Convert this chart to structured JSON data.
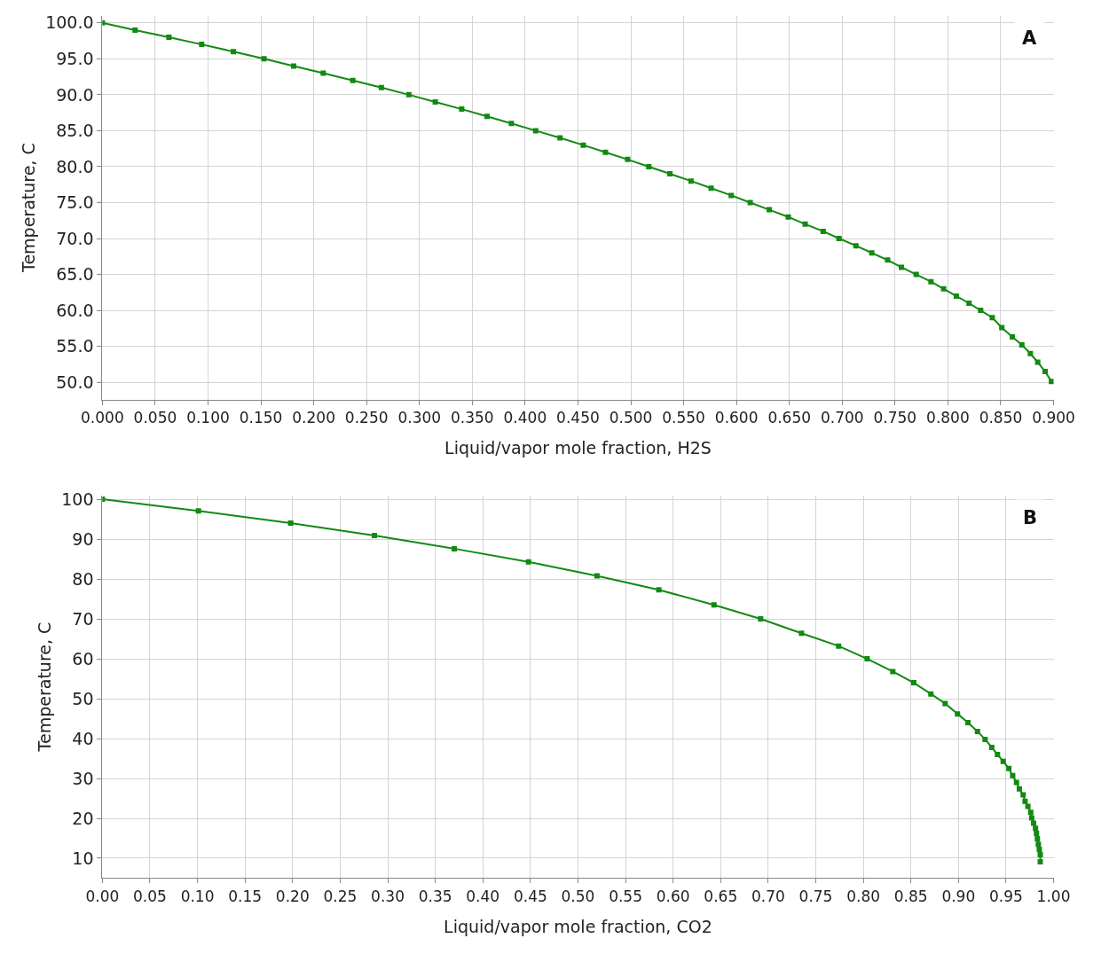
{
  "chart_data": [
    {
      "type": "line",
      "xlabel": "Liquid/vapor mole fraction, H2S",
      "ylabel": "Temperature, C",
      "annotations": [
        "A"
      ],
      "marker": "square",
      "line_style": "solid",
      "grid": true,
      "xlim": [
        0,
        0.9
      ],
      "ylim": [
        47.6,
        101
      ],
      "xticks": [
        {
          "value": 0,
          "label": "0.000"
        },
        {
          "value": 0.05,
          "label": "0.050"
        },
        {
          "value": 0.1,
          "label": "0.100"
        },
        {
          "value": 0.15,
          "label": "0.150"
        },
        {
          "value": 0.2,
          "label": "0.200"
        },
        {
          "value": 0.25,
          "label": "0.250"
        },
        {
          "value": 0.3,
          "label": "0.300"
        },
        {
          "value": 0.35,
          "label": "0.350"
        },
        {
          "value": 0.4,
          "label": "0.400"
        },
        {
          "value": 0.45,
          "label": "0.450"
        },
        {
          "value": 0.5,
          "label": "0.500"
        },
        {
          "value": 0.55,
          "label": "0.550"
        },
        {
          "value": 0.6,
          "label": "0.600"
        },
        {
          "value": 0.65,
          "label": "0.650"
        },
        {
          "value": 0.7,
          "label": "0.700"
        },
        {
          "value": 0.75,
          "label": "0.750"
        },
        {
          "value": 0.8,
          "label": "0.800"
        },
        {
          "value": 0.85,
          "label": "0.850"
        },
        {
          "value": 0.9,
          "label": "0.900"
        }
      ],
      "yticks": [
        {
          "value": 50,
          "label": "50.0"
        },
        {
          "value": 55,
          "label": "55.0"
        },
        {
          "value": 60,
          "label": "60.0"
        },
        {
          "value": 65,
          "label": "65.0"
        },
        {
          "value": 70,
          "label": "70.0"
        },
        {
          "value": 75,
          "label": "75.0"
        },
        {
          "value": 80,
          "label": "80.0"
        },
        {
          "value": 85,
          "label": "85.0"
        },
        {
          "value": 90,
          "label": "90.0"
        },
        {
          "value": 95,
          "label": "95.0"
        },
        {
          "value": 100,
          "label": "100.0"
        }
      ],
      "series": [
        {
          "color": "#128a12",
          "x": [
            0,
            0.031,
            0.063,
            0.094,
            0.124,
            0.153,
            0.181,
            0.209,
            0.237,
            0.264,
            0.29,
            0.315,
            0.34,
            0.364,
            0.387,
            0.41,
            0.433,
            0.455,
            0.476,
            0.497,
            0.517,
            0.537,
            0.557,
            0.576,
            0.595,
            0.613,
            0.631,
            0.649,
            0.665,
            0.682,
            0.697,
            0.713,
            0.728,
            0.743,
            0.756,
            0.77,
            0.784,
            0.796,
            0.808,
            0.82,
            0.831,
            0.842,
            0.851,
            0.861,
            0.87,
            0.878,
            0.885,
            0.892,
            0.898
          ],
          "values": [
            100,
            99,
            98,
            97,
            96,
            95,
            94,
            93,
            92,
            91,
            90,
            89,
            88,
            87,
            86,
            85,
            84,
            83,
            82,
            81,
            80,
            79,
            78,
            77,
            76,
            75,
            74,
            73,
            72,
            71,
            70,
            69,
            68,
            67,
            66,
            65,
            64,
            63,
            62,
            61,
            60,
            59,
            57.6,
            56.3,
            55.2,
            54,
            52.8,
            51.5,
            50.1
          ]
        }
      ]
    },
    {
      "type": "line",
      "xlabel": "Liquid/vapor mole fraction, CO2",
      "ylabel": "Temperature, C",
      "annotations": [
        "B"
      ],
      "marker": "square",
      "line_style": "solid",
      "grid": true,
      "xlim": [
        0,
        1
      ],
      "ylim": [
        5,
        101
      ],
      "xticks": [
        {
          "value": 0,
          "label": "0.00"
        },
        {
          "value": 0.05,
          "label": "0.05"
        },
        {
          "value": 0.1,
          "label": "0.10"
        },
        {
          "value": 0.15,
          "label": "0.15"
        },
        {
          "value": 0.2,
          "label": "0.20"
        },
        {
          "value": 0.25,
          "label": "0.25"
        },
        {
          "value": 0.3,
          "label": "0.30"
        },
        {
          "value": 0.35,
          "label": "0.35"
        },
        {
          "value": 0.4,
          "label": "0.40"
        },
        {
          "value": 0.45,
          "label": "0.45"
        },
        {
          "value": 0.5,
          "label": "0.50"
        },
        {
          "value": 0.55,
          "label": "0.55"
        },
        {
          "value": 0.6,
          "label": "0.60"
        },
        {
          "value": 0.65,
          "label": "0.65"
        },
        {
          "value": 0.7,
          "label": "0.70"
        },
        {
          "value": 0.75,
          "label": "0.75"
        },
        {
          "value": 0.8,
          "label": "0.80"
        },
        {
          "value": 0.85,
          "label": "0.85"
        },
        {
          "value": 0.9,
          "label": "0.90"
        },
        {
          "value": 0.95,
          "label": "0.95"
        },
        {
          "value": 1,
          "label": "1.00"
        }
      ],
      "yticks": [
        10,
        20,
        30,
        40,
        50,
        60,
        70,
        80,
        90,
        100
      ],
      "series": [
        {
          "color": "#128a12",
          "x": [
            0,
            0.101,
            0.198,
            0.286,
            0.37,
            0.448,
            0.52,
            0.585,
            0.643,
            0.692,
            0.735,
            0.774,
            0.804,
            0.831,
            0.853,
            0.871,
            0.886,
            0.899,
            0.91,
            0.92,
            0.928,
            0.935,
            0.941,
            0.947,
            0.953,
            0.957,
            0.961,
            0.964,
            0.968,
            0.97,
            0.973,
            0.976,
            0.977,
            0.979,
            0.981,
            0.982,
            0.983,
            0.984,
            0.985,
            0.986,
            0.986
          ],
          "values": [
            100,
            97.1,
            94,
            90.9,
            87.6,
            84.3,
            80.8,
            77.3,
            73.5,
            70,
            66.4,
            63.2,
            60,
            56.8,
            54,
            51.2,
            48.8,
            46.2,
            44,
            41.8,
            39.8,
            37.8,
            36,
            34.3,
            32.5,
            30.7,
            29,
            27.4,
            25.9,
            24.3,
            23,
            21.5,
            20.1,
            18.8,
            17.5,
            16.2,
            14.9,
            13.5,
            12.2,
            10.9,
            9.1
          ]
        }
      ]
    }
  ]
}
